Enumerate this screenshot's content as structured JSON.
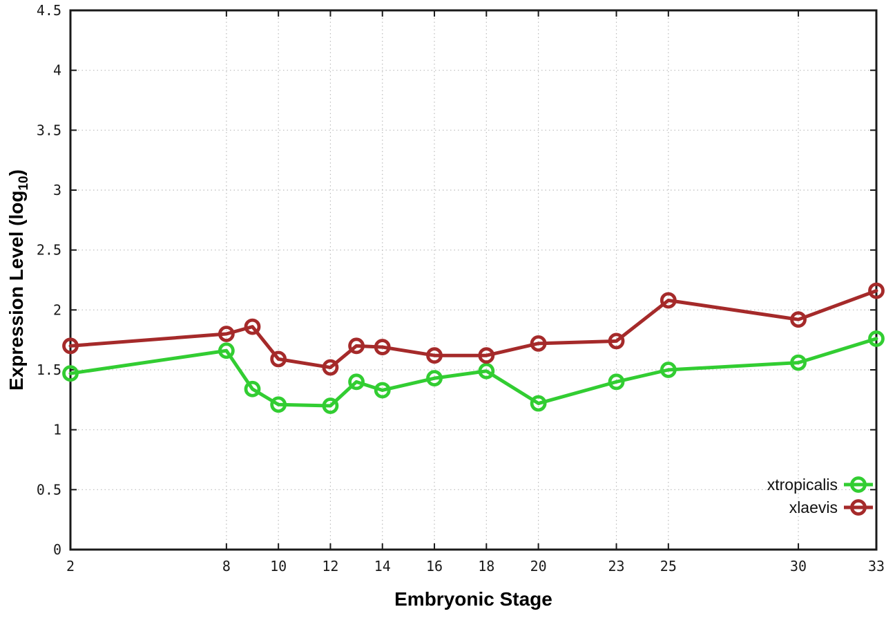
{
  "chart_data": {
    "type": "line",
    "xlabel": "Embryonic Stage",
    "ylabel_prefix": "Expression Level (log",
    "ylabel_sub": "10",
    "ylabel_suffix": ")",
    "x": [
      2,
      8,
      9,
      10,
      12,
      13,
      14,
      16,
      18,
      20,
      23,
      25,
      30,
      33
    ],
    "xticks": [
      2,
      8,
      10,
      12,
      14,
      16,
      18,
      20,
      23,
      25,
      30,
      33
    ],
    "yticks": [
      0,
      0.5,
      1,
      1.5,
      2,
      2.5,
      3,
      3.5,
      4,
      4.5
    ],
    "xlim": [
      2,
      33
    ],
    "ylim": [
      0,
      4.5
    ],
    "grid": true,
    "legend_position": "bottom-right-inside",
    "series": [
      {
        "name": "xtropicalis",
        "color": "#32cd32",
        "values": [
          1.47,
          1.66,
          1.34,
          1.21,
          1.2,
          1.4,
          1.33,
          1.43,
          1.49,
          1.22,
          1.4,
          1.5,
          1.56,
          1.76
        ]
      },
      {
        "name": "xlaevis",
        "color": "#a52a2a",
        "values": [
          1.7,
          1.8,
          1.86,
          1.59,
          1.52,
          1.7,
          1.69,
          1.62,
          1.62,
          1.72,
          1.74,
          2.08,
          1.92,
          2.16
        ]
      }
    ],
    "colors": {
      "grid": "#bbbbbb",
      "border": "#1a1a1a",
      "tick": "#1a1a1a",
      "background": "#ffffff"
    }
  }
}
